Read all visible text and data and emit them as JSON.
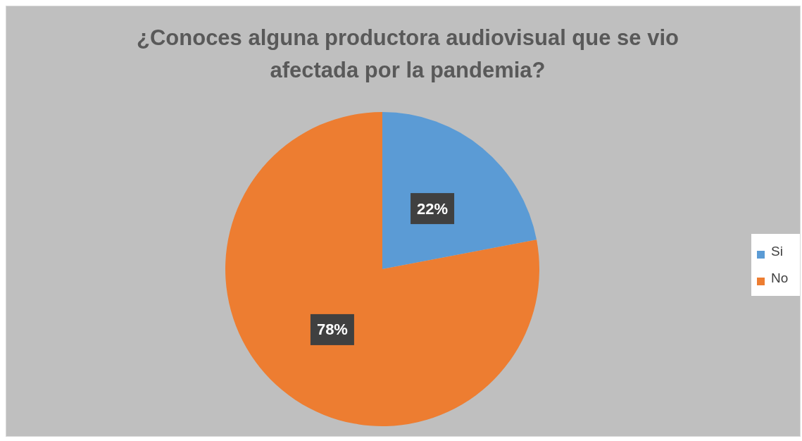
{
  "chart_data": {
    "type": "pie",
    "title": "¿Conoces alguna productora audiovisual que se vio afectada por la pandemia?",
    "categories": [
      "Si",
      "No"
    ],
    "values": [
      22,
      78
    ],
    "colors": [
      "#5b9bd5",
      "#ed7d31"
    ],
    "value_labels": [
      "22%",
      "78%"
    ],
    "legend": "right"
  }
}
